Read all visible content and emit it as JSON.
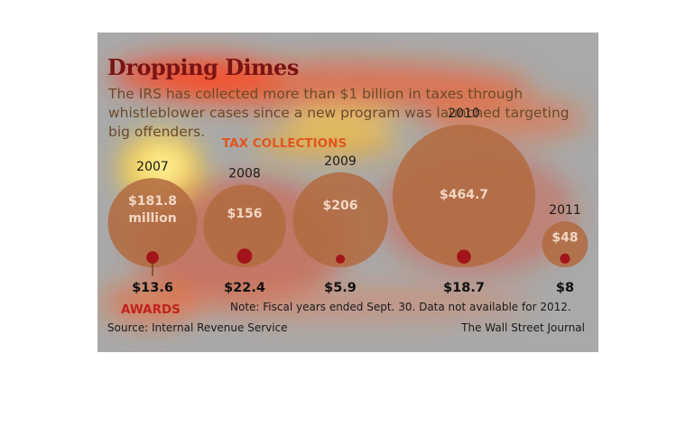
{
  "header": {
    "title": "Dropping Dimes",
    "subtitle": "The IRS has collected more than $1 billion in taxes through whistleblower cases since a new program was launched targeting big offenders."
  },
  "labels": {
    "tax_collections": "TAX COLLECTIONS",
    "awards": "AWARDS",
    "note": "Note: Fiscal years ended Sept. 30. Data not available for 2012.",
    "source": "Source: Internal Revenue Service",
    "credit": "The Wall Street Journal"
  },
  "colors": {
    "collection_circle": "#b26a3f",
    "award_circle": "#a3141a",
    "year_text": "#1a1a1a",
    "value_text": "#f2d6c4",
    "award_text": "#111111"
  },
  "chart_data": {
    "type": "bubble",
    "categories": [
      "2007",
      "2008",
      "2009",
      "2010",
      "2011"
    ],
    "series": [
      {
        "name": "TAX COLLECTIONS",
        "values": [
          181.8,
          156,
          206,
          464.7,
          48
        ],
        "labels": [
          "$181.8 million",
          "$156",
          "$206",
          "$464.7",
          "$48"
        ]
      },
      {
        "name": "AWARDS",
        "values": [
          13.6,
          22.4,
          5.9,
          18.7,
          8
        ],
        "labels": [
          "$13.6",
          "$22.4",
          "$5.9",
          "$18.7",
          "$8"
        ]
      }
    ]
  }
}
